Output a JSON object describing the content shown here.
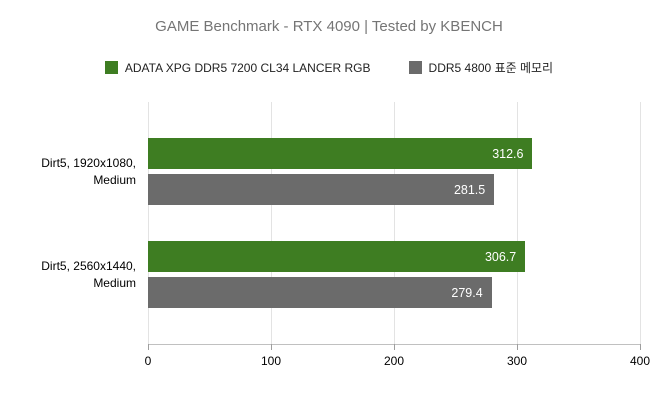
{
  "chart_data": {
    "type": "bar",
    "orientation": "horizontal",
    "title": "GAME Benchmark - RTX 4090 | Tested by KBENCH",
    "categories": [
      "Dirt5, 1920x1080, Medium",
      "Dirt5, 2560x1440, Medium"
    ],
    "series": [
      {
        "name": "ADATA XPG DDR5 7200 CL34 LANCER RGB",
        "color": "#3e7d22",
        "values": [
          312.6,
          306.7
        ]
      },
      {
        "name": "DDR5 4800 표준 메모리",
        "color": "#6b6b6b",
        "values": [
          281.5,
          279.4
        ]
      }
    ],
    "xlim": [
      0,
      400
    ],
    "xticks": [
      0,
      100,
      200,
      300,
      400
    ],
    "grid": true,
    "legend_position": "top",
    "colors": {
      "title_text": "#757575",
      "gridline": "#e3e3e3",
      "bar_value_text": "#ffffff"
    }
  }
}
